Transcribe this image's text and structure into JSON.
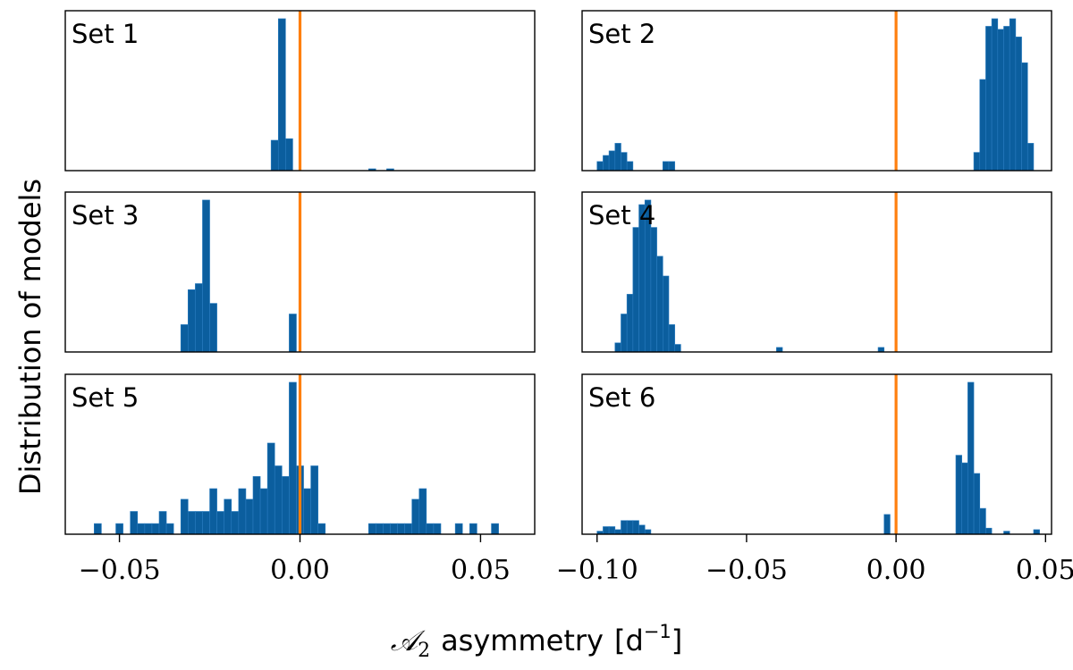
{
  "colors": {
    "bar": "#0b5e9e",
    "reference_line": "#ff7f0e",
    "frame": "#000000"
  },
  "chart_data": {
    "type": "histogram-grid",
    "ylabel": "Distribution of models",
    "xlabel": {
      "math_symbol": "𝒜",
      "subscript": "2",
      "text": "asymmetry",
      "unit_open": "[d",
      "unit_exponent": "−1",
      "unit_close": "]"
    },
    "reference_x": 0.0,
    "grid": false,
    "columns": [
      {
        "xlim": [
          -0.065,
          0.065
        ],
        "ticks": [
          -0.05,
          0.0,
          0.05
        ],
        "tick_labels": [
          "−0.05",
          "0.00",
          "0.05"
        ]
      },
      {
        "xlim": [
          -0.105,
          0.052
        ],
        "ticks": [
          -0.1,
          -0.05,
          0.0,
          0.05
        ],
        "tick_labels": [
          "−0.10",
          "−0.05",
          "0.00",
          "0.05"
        ]
      }
    ],
    "panels": [
      {
        "label": "Set 1",
        "column": 0,
        "bin_width": 0.002,
        "ymax": 1.0,
        "bins": [
          [
            -0.008,
            0.2
          ],
          [
            -0.006,
            1.0
          ],
          [
            -0.004,
            0.21
          ],
          [
            0.019,
            0.012
          ],
          [
            0.024,
            0.012
          ]
        ]
      },
      {
        "label": "Set 2",
        "column": 1,
        "bin_width": 0.002,
        "ymax": 1.0,
        "bins": [
          [
            -0.1,
            0.06
          ],
          [
            -0.098,
            0.1
          ],
          [
            -0.096,
            0.13
          ],
          [
            -0.094,
            0.18
          ],
          [
            -0.092,
            0.12
          ],
          [
            -0.09,
            0.06
          ],
          [
            -0.078,
            0.06
          ],
          [
            -0.076,
            0.06
          ],
          [
            0.026,
            0.12
          ],
          [
            0.028,
            0.6
          ],
          [
            0.03,
            0.95
          ],
          [
            0.032,
            1.0
          ],
          [
            0.034,
            0.93
          ],
          [
            0.036,
            0.95
          ],
          [
            0.038,
            1.0
          ],
          [
            0.04,
            0.88
          ],
          [
            0.042,
            0.71
          ],
          [
            0.044,
            0.18
          ]
        ]
      },
      {
        "label": "Set 3",
        "column": 0,
        "bin_width": 0.002,
        "ymax": 1.0,
        "bins": [
          [
            -0.033,
            0.18
          ],
          [
            -0.031,
            0.41
          ],
          [
            -0.029,
            0.45
          ],
          [
            -0.027,
            1.0
          ],
          [
            -0.025,
            0.32
          ],
          [
            -0.003,
            0.25
          ]
        ]
      },
      {
        "label": "Set 4",
        "column": 1,
        "bin_width": 0.002,
        "ymax": 1.0,
        "bins": [
          [
            -0.094,
            0.06
          ],
          [
            -0.092,
            0.25
          ],
          [
            -0.09,
            0.38
          ],
          [
            -0.088,
            0.82
          ],
          [
            -0.086,
            0.97
          ],
          [
            -0.084,
            1.0
          ],
          [
            -0.082,
            0.82
          ],
          [
            -0.08,
            0.63
          ],
          [
            -0.078,
            0.5
          ],
          [
            -0.076,
            0.18
          ],
          [
            -0.074,
            0.05
          ],
          [
            -0.04,
            0.03
          ],
          [
            -0.006,
            0.03
          ]
        ]
      },
      {
        "label": "Set 5",
        "column": 0,
        "bin_width": 0.002,
        "ymax": 1.0,
        "bins": [
          [
            -0.057,
            0.07
          ],
          [
            -0.051,
            0.07
          ],
          [
            -0.047,
            0.15
          ],
          [
            -0.045,
            0.07
          ],
          [
            -0.043,
            0.07
          ],
          [
            -0.041,
            0.07
          ],
          [
            -0.039,
            0.15
          ],
          [
            -0.037,
            0.07
          ],
          [
            -0.033,
            0.23
          ],
          [
            -0.031,
            0.15
          ],
          [
            -0.029,
            0.15
          ],
          [
            -0.027,
            0.15
          ],
          [
            -0.025,
            0.3
          ],
          [
            -0.023,
            0.15
          ],
          [
            -0.021,
            0.23
          ],
          [
            -0.019,
            0.15
          ],
          [
            -0.017,
            0.3
          ],
          [
            -0.015,
            0.23
          ],
          [
            -0.013,
            0.38
          ],
          [
            -0.011,
            0.3
          ],
          [
            -0.009,
            0.6
          ],
          [
            -0.007,
            0.45
          ],
          [
            -0.005,
            0.38
          ],
          [
            -0.003,
            1.0
          ],
          [
            -0.001,
            0.45
          ],
          [
            0.001,
            0.3
          ],
          [
            0.003,
            0.45
          ],
          [
            0.005,
            0.07
          ],
          [
            0.019,
            0.07
          ],
          [
            0.021,
            0.07
          ],
          [
            0.023,
            0.07
          ],
          [
            0.025,
            0.07
          ],
          [
            0.027,
            0.07
          ],
          [
            0.029,
            0.07
          ],
          [
            0.031,
            0.23
          ],
          [
            0.033,
            0.3
          ],
          [
            0.035,
            0.07
          ],
          [
            0.037,
            0.07
          ],
          [
            0.043,
            0.07
          ],
          [
            0.047,
            0.07
          ],
          [
            0.053,
            0.07
          ]
        ]
      },
      {
        "label": "Set 6",
        "column": 1,
        "bin_width": 0.002,
        "ymax": 1.0,
        "bins": [
          [
            -0.1,
            0.02
          ],
          [
            -0.098,
            0.05
          ],
          [
            -0.096,
            0.05
          ],
          [
            -0.094,
            0.03
          ],
          [
            -0.092,
            0.09
          ],
          [
            -0.09,
            0.09
          ],
          [
            -0.088,
            0.09
          ],
          [
            -0.086,
            0.06
          ],
          [
            -0.084,
            0.03
          ],
          [
            -0.004,
            0.13
          ],
          [
            0.02,
            0.52
          ],
          [
            0.022,
            0.47
          ],
          [
            0.024,
            1.0
          ],
          [
            0.026,
            0.4
          ],
          [
            0.028,
            0.17
          ],
          [
            0.03,
            0.04
          ],
          [
            0.036,
            0.02
          ],
          [
            0.046,
            0.03
          ]
        ]
      }
    ]
  }
}
